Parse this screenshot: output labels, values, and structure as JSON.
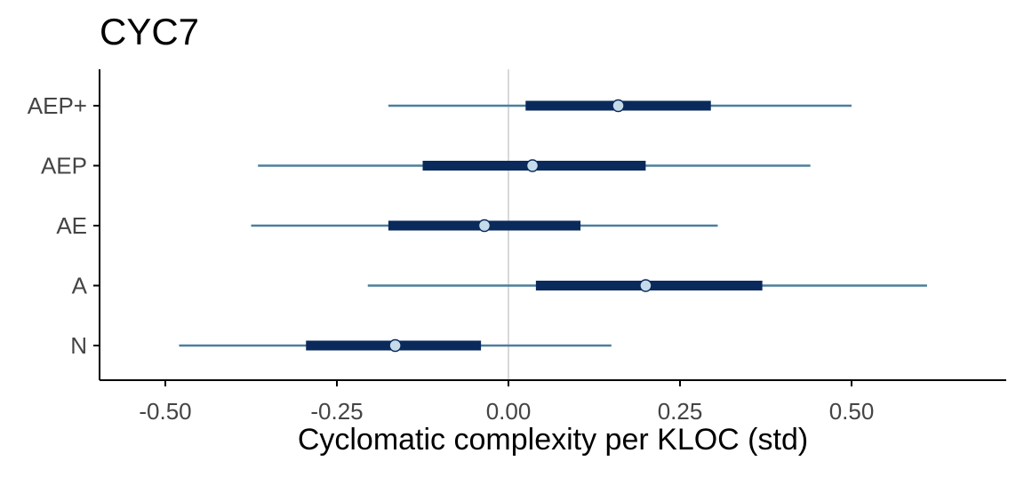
{
  "chart_data": {
    "type": "interval",
    "title": "CYC7",
    "xlabel": "Cyclomatic complexity per KLOC (std)",
    "ylabel": "",
    "xlim": [
      -0.6,
      0.73
    ],
    "xticks": [
      -0.5,
      -0.25,
      0.0,
      0.25,
      0.5
    ],
    "xtick_labels": [
      "-0.50",
      "-0.25",
      "0.00",
      "0.25",
      "0.50"
    ],
    "reference_line_x": 0.0,
    "grid": false,
    "categories": [
      "AEP+",
      "AEP",
      "AE",
      "A",
      "N"
    ],
    "rows": [
      {
        "label": "AEP+",
        "point": 0.16,
        "inner": [
          0.025,
          0.295
        ],
        "outer": [
          -0.175,
          0.5
        ]
      },
      {
        "label": "AEP",
        "point": 0.035,
        "inner": [
          -0.125,
          0.2
        ],
        "outer": [
          -0.365,
          0.44
        ]
      },
      {
        "label": "AE",
        "point": -0.035,
        "inner": [
          -0.175,
          0.105
        ],
        "outer": [
          -0.375,
          0.305
        ]
      },
      {
        "label": "A",
        "point": 0.2,
        "inner": [
          0.04,
          0.37
        ],
        "outer": [
          -0.205,
          0.61
        ]
      },
      {
        "label": "N",
        "point": -0.165,
        "inner": [
          -0.295,
          -0.04
        ],
        "outer": [
          -0.48,
          0.15
        ]
      }
    ],
    "colors": {
      "outer_interval": "#4d7f9c",
      "inner_interval": "#0a2a5c",
      "point_fill": "#c6dbea",
      "point_stroke": "#0a2a5c",
      "reference_line": "#d9d9d9",
      "axis": "#000000"
    }
  }
}
